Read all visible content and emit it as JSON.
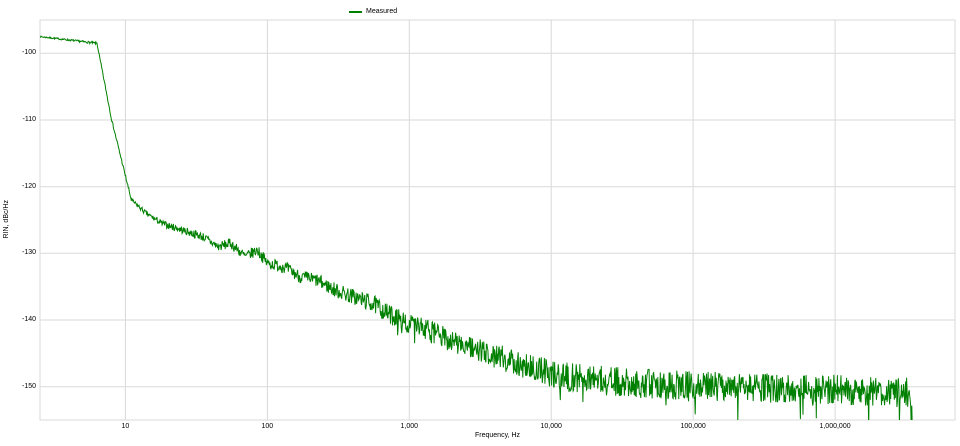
{
  "page": {
    "background": "#ffffff"
  },
  "chart_data": {
    "type": "line",
    "title": "",
    "xlabel": "Frequency, Hz",
    "ylabel": "RIN, dBc/Hz",
    "xscale": "log",
    "grid": true,
    "grid_color": "#d9d9d9",
    "xlim": [
      2.5,
      7000000
    ],
    "ylim": [
      -155,
      -95
    ],
    "x_ticks": [
      {
        "value": 10,
        "label": "10"
      },
      {
        "value": 100,
        "label": "100"
      },
      {
        "value": 1000,
        "label": "1,000"
      },
      {
        "value": 10000,
        "label": "10,000"
      },
      {
        "value": 100000,
        "label": "100,000"
      },
      {
        "value": 1000000,
        "label": "1,000,000"
      }
    ],
    "y_ticks": [
      {
        "value": -100,
        "label": "-100"
      },
      {
        "value": -110,
        "label": "-110"
      },
      {
        "value": -120,
        "label": "-120"
      },
      {
        "value": -130,
        "label": "-130"
      },
      {
        "value": -140,
        "label": "-140"
      },
      {
        "value": -150,
        "label": "-150"
      }
    ],
    "legend_position": "top-center",
    "series": [
      {
        "name": "Measured",
        "color": "#008000",
        "anchors": [
          [
            2.5,
            -97.5
          ],
          [
            4,
            -98.0
          ],
          [
            6.3,
            -98.5
          ],
          [
            8,
            -110.0
          ],
          [
            11,
            -122.0
          ],
          [
            14,
            -124.0
          ],
          [
            18,
            -125.5
          ],
          [
            25,
            -126.5
          ],
          [
            35,
            -127.5
          ],
          [
            45,
            -129.0
          ],
          [
            55,
            -128.5
          ],
          [
            70,
            -130.5
          ],
          [
            85,
            -129.5
          ],
          [
            100,
            -131.5
          ],
          [
            130,
            -132.0
          ],
          [
            170,
            -133.5
          ],
          [
            220,
            -134.0
          ],
          [
            300,
            -135.5
          ],
          [
            400,
            -136.5
          ],
          [
            550,
            -137.5
          ],
          [
            700,
            -139.0
          ],
          [
            1000,
            -140.5
          ],
          [
            1500,
            -142.0
          ],
          [
            2200,
            -143.5
          ],
          [
            3500,
            -145.0
          ],
          [
            5000,
            -146.0
          ],
          [
            8000,
            -147.5
          ],
          [
            12000,
            -148.5
          ],
          [
            20000,
            -149.0
          ],
          [
            40000,
            -149.5
          ],
          [
            80000,
            -149.8
          ],
          [
            150000,
            -150.0
          ],
          [
            300000,
            -150.2
          ],
          [
            600000,
            -150.3
          ],
          [
            1200000,
            -150.5
          ],
          [
            2000000,
            -150.8
          ],
          [
            3000000,
            -150.8
          ],
          [
            3300000,
            -151.0
          ],
          [
            3500000,
            -155.5
          ]
        ],
        "noise_amp": [
          [
            2.5,
            0.1
          ],
          [
            8,
            0.2
          ],
          [
            20,
            0.5
          ],
          [
            60,
            0.8
          ],
          [
            200,
            1.0
          ],
          [
            500,
            1.3
          ],
          [
            1000,
            1.6
          ],
          [
            3000,
            1.8
          ],
          [
            10000,
            2.2
          ],
          [
            50000,
            2.2
          ],
          [
            500000,
            2.2
          ],
          [
            3500000,
            2.3
          ]
        ]
      }
    ]
  }
}
